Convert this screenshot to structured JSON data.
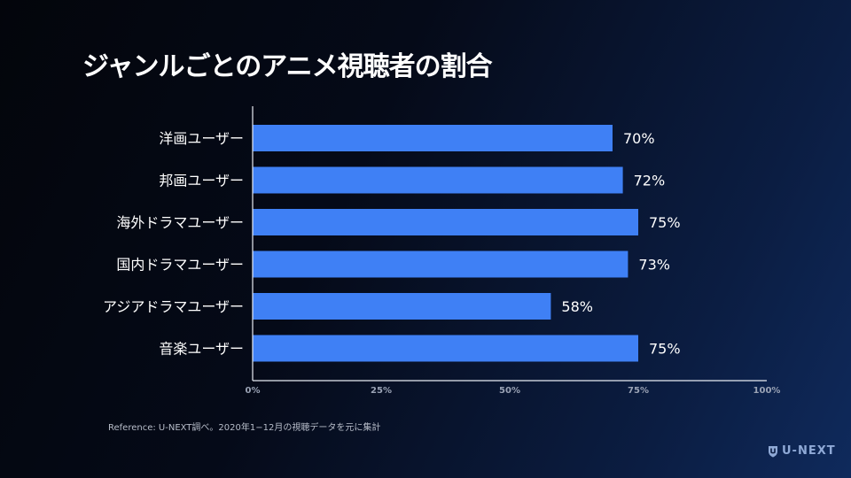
{
  "slide": {
    "title": "ジャンルごとのアニメ視聴者の割合",
    "reference": "Reference: U-NEXT調べ。2020年1−12月の視聴データを元に集計",
    "logo_text": "U-NEXT"
  },
  "colors": {
    "bar": "#3f80f5",
    "axis": "#e8ecf3",
    "tick_text": "#9aa3b5",
    "logo": "#8fa9d6"
  },
  "chart_data": {
    "type": "bar",
    "orientation": "horizontal",
    "categories": [
      "洋画ユーザー",
      "邦画ユーザー",
      "海外ドラマユーザー",
      "国内ドラマユーザー",
      "アジアドラマユーザー",
      "音楽ユーザー"
    ],
    "values": [
      70,
      72,
      75,
      73,
      58,
      75
    ],
    "value_labels": [
      "70%",
      "72%",
      "75%",
      "73%",
      "58%",
      "75%"
    ],
    "xlim": [
      0,
      100
    ],
    "xticks": [
      0,
      25,
      50,
      75,
      100
    ],
    "xtick_labels": [
      "0%",
      "25%",
      "50%",
      "75%",
      "100%"
    ],
    "title": "ジャンルごとのアニメ視聴者の割合",
    "xlabel": "",
    "ylabel": "",
    "grid": false,
    "legend": "none"
  }
}
